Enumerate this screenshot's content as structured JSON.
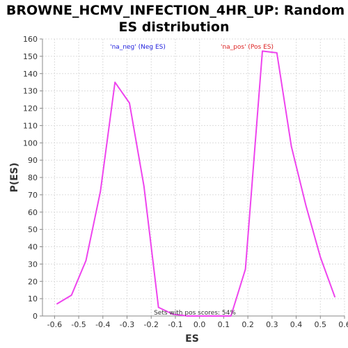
{
  "chart_data": {
    "type": "line",
    "title_line1": "BROWNE_HCMV_INFECTION_4HR_UP: Random",
    "title_line2": "ES distribution",
    "xlabel": "ES",
    "ylabel": "P(ES)",
    "xlim": [
      -0.65,
      0.6
    ],
    "ylim": [
      0,
      160
    ],
    "x_ticks": [
      -0.6,
      -0.5,
      -0.4,
      -0.3,
      -0.2,
      -0.1,
      0.0,
      0.1,
      0.2,
      0.3,
      0.4,
      0.5,
      0.6
    ],
    "x_tick_labels": [
      "-0.6",
      "-0.5",
      "-0.4",
      "-0.3",
      "-0.2",
      "-0.1",
      "0.0",
      "0.1",
      "0.2",
      "0.3",
      "0.4",
      "0.5",
      "0.6"
    ],
    "y_ticks": [
      0,
      10,
      20,
      30,
      40,
      50,
      60,
      70,
      80,
      90,
      100,
      110,
      120,
      130,
      140,
      150,
      160
    ],
    "grid": true,
    "series": [
      {
        "color": "#ee44ee",
        "x": [
          -0.59,
          -0.53,
          -0.47,
          -0.41,
          -0.35,
          -0.29,
          -0.23,
          -0.17,
          -0.11,
          -0.05,
          0.01,
          0.07,
          0.13,
          0.19,
          0.26,
          0.32,
          0.38,
          0.44,
          0.5,
          0.56
        ],
        "y": [
          7,
          12,
          32,
          72,
          135,
          123,
          75,
          5,
          1,
          0,
          0,
          0,
          0,
          27,
          153,
          152,
          98,
          64,
          34,
          11
        ]
      }
    ],
    "annotations": {
      "neg_label": "'na_neg' (Neg ES)",
      "pos_label": "'na_pos' (Pos ES)",
      "neg_color": "#2222dd",
      "pos_color": "#dd2222",
      "footer": "Sets with pos scores: 54%"
    }
  }
}
